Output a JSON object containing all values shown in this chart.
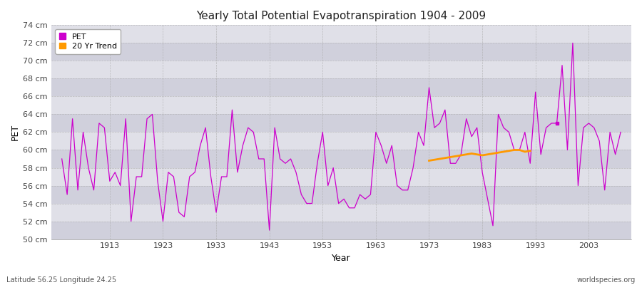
{
  "title": "Yearly Total Potential Evapotranspiration 1904 - 2009",
  "xlabel": "Year",
  "ylabel": "PET",
  "subtitle_left": "Latitude 56.25 Longitude 24.25",
  "subtitle_right": "worldspecies.org",
  "ylim": [
    50,
    74
  ],
  "ytick_labels": [
    "50 cm",
    "52 cm",
    "54 cm",
    "56 cm",
    "58 cm",
    "60 cm",
    "62 cm",
    "64 cm",
    "66 cm",
    "68 cm",
    "70 cm",
    "72 cm",
    "74 cm"
  ],
  "ytick_values": [
    50,
    52,
    54,
    56,
    58,
    60,
    62,
    64,
    66,
    68,
    70,
    72,
    74
  ],
  "xtick_values": [
    1913,
    1923,
    1933,
    1943,
    1953,
    1963,
    1973,
    1983,
    1993,
    2003
  ],
  "pet_color": "#cc00cc",
  "trend_color": "#ff9900",
  "bg_color": "#ffffff",
  "plot_bg_color": "#e8e8e8",
  "band_light": "#e0e0e8",
  "band_dark": "#d0d0dc",
  "years": [
    1904,
    1905,
    1906,
    1907,
    1908,
    1909,
    1910,
    1911,
    1912,
    1913,
    1914,
    1915,
    1916,
    1917,
    1918,
    1919,
    1920,
    1921,
    1922,
    1923,
    1924,
    1925,
    1926,
    1927,
    1928,
    1929,
    1930,
    1931,
    1932,
    1933,
    1934,
    1935,
    1936,
    1937,
    1938,
    1939,
    1940,
    1941,
    1942,
    1943,
    1944,
    1945,
    1946,
    1947,
    1948,
    1949,
    1950,
    1951,
    1952,
    1953,
    1954,
    1955,
    1956,
    1957,
    1958,
    1959,
    1960,
    1961,
    1962,
    1963,
    1964,
    1965,
    1966,
    1967,
    1968,
    1969,
    1970,
    1971,
    1972,
    1973,
    1974,
    1975,
    1976,
    1977,
    1978,
    1979,
    1980,
    1981,
    1982,
    1983,
    1984,
    1985,
    1986,
    1987,
    1988,
    1989,
    1990,
    1991,
    1992,
    1993,
    1994,
    1995,
    1996,
    1997,
    1998,
    1999,
    2000,
    2001,
    2002,
    2003,
    2004,
    2005,
    2006,
    2007,
    2008,
    2009
  ],
  "pet_values": [
    59.0,
    55.0,
    63.5,
    55.5,
    62.0,
    58.0,
    55.5,
    63.0,
    62.5,
    56.5,
    57.5,
    56.0,
    63.5,
    52.0,
    57.0,
    57.0,
    63.5,
    64.0,
    56.5,
    52.0,
    57.5,
    57.0,
    53.0,
    52.5,
    57.0,
    57.5,
    60.5,
    62.5,
    57.0,
    53.0,
    57.0,
    57.0,
    64.5,
    57.5,
    60.5,
    62.5,
    62.0,
    59.0,
    59.0,
    51.0,
    62.5,
    59.0,
    58.5,
    59.0,
    57.5,
    55.0,
    54.0,
    54.0,
    58.5,
    62.0,
    56.0,
    58.0,
    54.0,
    54.5,
    53.5,
    53.5,
    55.0,
    54.5,
    55.0,
    62.0,
    60.5,
    58.5,
    60.5,
    56.0,
    55.5,
    55.5,
    58.0,
    62.0,
    60.5,
    67.0,
    62.5,
    63.0,
    64.5,
    58.5,
    58.5,
    59.5,
    63.5,
    61.5,
    62.5,
    57.5,
    54.5,
    51.5,
    64.0,
    62.5,
    62.0,
    60.0,
    60.0,
    62.0,
    58.5,
    66.5,
    59.5,
    62.5,
    63.0,
    63.0,
    69.5,
    60.0,
    72.0,
    56.0,
    62.5,
    63.0,
    62.5,
    61.0,
    55.5,
    62.0,
    59.5,
    62.0
  ],
  "trend_years": [
    1973,
    1974,
    1975,
    1976,
    1977,
    1978,
    1979,
    1980,
    1981,
    1982,
    1983,
    1984,
    1985,
    1986,
    1987,
    1988,
    1989,
    1990,
    1991,
    1992
  ],
  "trend_values": [
    58.8,
    58.9,
    59.0,
    59.1,
    59.2,
    59.3,
    59.4,
    59.5,
    59.6,
    59.5,
    59.4,
    59.5,
    59.6,
    59.7,
    59.8,
    59.9,
    60.0,
    60.0,
    59.8,
    59.9
  ],
  "isolated_year": 1997,
  "isolated_value": 63.0
}
